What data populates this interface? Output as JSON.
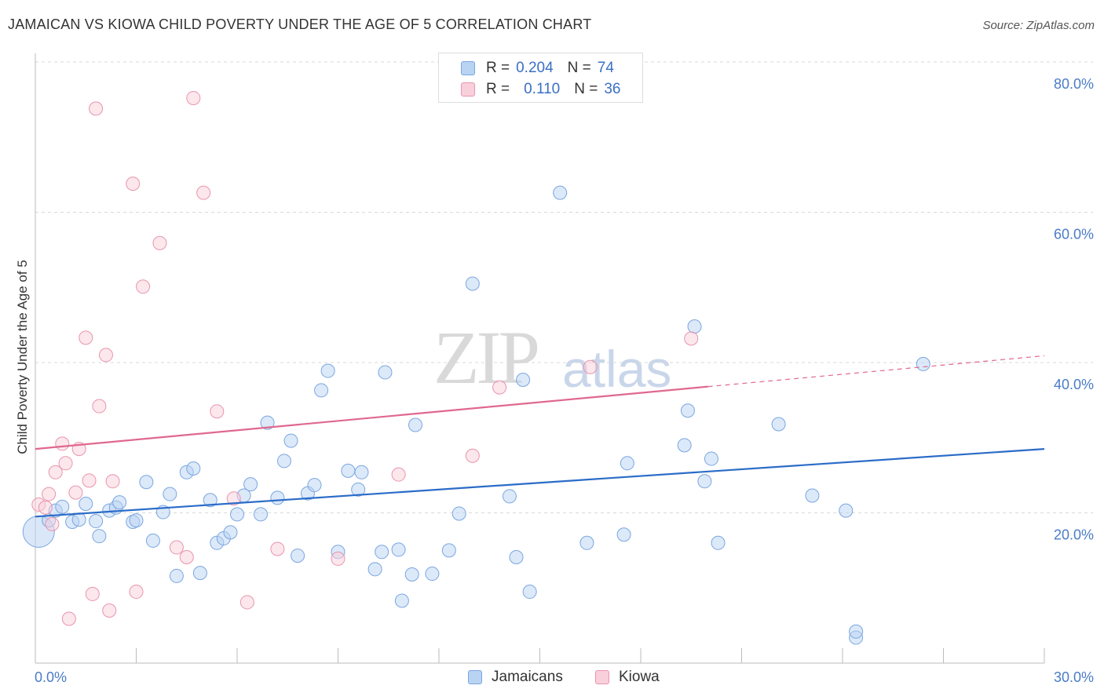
{
  "title": "JAMAICAN VS KIOWA CHILD POVERTY UNDER THE AGE OF 5 CORRELATION CHART",
  "source": "Source: ZipAtlas.com",
  "watermark": {
    "zip": "ZIP",
    "atlas": "atlas"
  },
  "legend": {
    "rows": [
      {
        "r_label": "R =",
        "r_value": "0.204",
        "n_label": "N =",
        "n_value": "74",
        "color": "#a8c8f0",
        "border": "#7aa6e0"
      },
      {
        "r_label": "R =",
        "r_value": "0.110",
        "n_label": "N =",
        "n_value": "36",
        "color": "#f7c0d0",
        "border": "#e895ad"
      }
    ]
  },
  "bottom_legend": [
    {
      "label": "Jamaicans",
      "color": "#a8c8f0",
      "border": "#7aa6e0"
    },
    {
      "label": "Kiowa",
      "color": "#f7c0d0",
      "border": "#e895ad"
    }
  ],
  "chart_data": {
    "type": "scatter",
    "title": "JAMAICAN VS KIOWA CHILD POVERTY UNDER THE AGE OF 5 CORRELATION CHART",
    "xlabel": "",
    "ylabel": "Child Poverty Under the Age of 5",
    "xlim": [
      0,
      30
    ],
    "ylim": [
      0,
      82
    ],
    "x_tick_labels": [
      "0.0%",
      "30.0%"
    ],
    "y_ticks": [
      20,
      40,
      60,
      80
    ],
    "y_tick_labels": [
      "20.0%",
      "40.0%",
      "60.0%",
      "80.0%"
    ],
    "grid": true,
    "legend_position": "top-center",
    "series": [
      {
        "name": "Jamaicans",
        "color": "#7aa6e0",
        "fill": "#b9d3f3",
        "trend": {
          "x": [
            0,
            30
          ],
          "y": [
            19.5,
            28.5
          ],
          "color": "#2b6cc8"
        },
        "points": [
          [
            0.1,
            17.5
          ],
          [
            0.4,
            19.0
          ],
          [
            0.6,
            20.3
          ],
          [
            0.8,
            20.8
          ],
          [
            1.1,
            18.8
          ],
          [
            1.3,
            19.1
          ],
          [
            1.5,
            21.2
          ],
          [
            1.8,
            18.9
          ],
          [
            1.9,
            16.9
          ],
          [
            2.2,
            20.3
          ],
          [
            2.4,
            20.7
          ],
          [
            2.5,
            21.4
          ],
          [
            2.9,
            18.8
          ],
          [
            3.0,
            19.0
          ],
          [
            3.3,
            24.1
          ],
          [
            3.5,
            16.3
          ],
          [
            3.8,
            20.1
          ],
          [
            4.0,
            22.5
          ],
          [
            4.2,
            11.6
          ],
          [
            4.5,
            25.4
          ],
          [
            4.7,
            25.9
          ],
          [
            4.9,
            12.0
          ],
          [
            5.2,
            21.7
          ],
          [
            5.4,
            16.0
          ],
          [
            5.6,
            16.6
          ],
          [
            5.8,
            17.4
          ],
          [
            6.0,
            19.8
          ],
          [
            6.2,
            22.3
          ],
          [
            6.4,
            23.8
          ],
          [
            6.7,
            19.8
          ],
          [
            6.9,
            32.0
          ],
          [
            7.2,
            22.0
          ],
          [
            7.4,
            26.9
          ],
          [
            7.6,
            29.6
          ],
          [
            7.8,
            14.3
          ],
          [
            8.1,
            22.6
          ],
          [
            8.3,
            23.7
          ],
          [
            8.5,
            36.3
          ],
          [
            8.7,
            38.9
          ],
          [
            9.0,
            14.8
          ],
          [
            9.3,
            25.6
          ],
          [
            9.6,
            23.1
          ],
          [
            9.7,
            25.4
          ],
          [
            10.1,
            12.5
          ],
          [
            10.3,
            14.8
          ],
          [
            10.4,
            38.7
          ],
          [
            10.8,
            15.1
          ],
          [
            10.9,
            8.3
          ],
          [
            11.2,
            11.8
          ],
          [
            11.3,
            31.7
          ],
          [
            11.8,
            11.9
          ],
          [
            12.3,
            15.0
          ],
          [
            12.6,
            19.9
          ],
          [
            13.0,
            50.5
          ],
          [
            14.1,
            22.2
          ],
          [
            14.3,
            14.1
          ],
          [
            14.5,
            37.7
          ],
          [
            14.7,
            9.5
          ],
          [
            15.6,
            62.6
          ],
          [
            16.4,
            16.0
          ],
          [
            17.5,
            17.1
          ],
          [
            17.6,
            26.6
          ],
          [
            19.3,
            29.0
          ],
          [
            19.4,
            33.6
          ],
          [
            19.6,
            44.8
          ],
          [
            19.9,
            24.2
          ],
          [
            20.1,
            27.2
          ],
          [
            20.3,
            16.0
          ],
          [
            22.1,
            31.8
          ],
          [
            23.1,
            22.3
          ],
          [
            24.1,
            20.3
          ],
          [
            24.4,
            3.4
          ],
          [
            24.4,
            4.2
          ],
          [
            26.4,
            39.8
          ]
        ]
      },
      {
        "name": "Kiowa",
        "color": "#e895ad",
        "fill": "#f9cfdb",
        "trend": {
          "x": [
            0,
            20.0
          ],
          "y": [
            28.5,
            36.8
          ],
          "dashed_to": [
            30,
            40.9
          ],
          "color": "#e0688e"
        },
        "points": [
          [
            0.1,
            21.1
          ],
          [
            0.3,
            20.7
          ],
          [
            0.4,
            22.5
          ],
          [
            0.5,
            18.5
          ],
          [
            0.6,
            25.4
          ],
          [
            0.8,
            29.2
          ],
          [
            0.9,
            26.6
          ],
          [
            1.0,
            5.9
          ],
          [
            1.2,
            22.7
          ],
          [
            1.3,
            28.5
          ],
          [
            1.5,
            43.3
          ],
          [
            1.6,
            24.3
          ],
          [
            1.7,
            9.2
          ],
          [
            1.8,
            73.8
          ],
          [
            1.9,
            34.2
          ],
          [
            2.1,
            41.0
          ],
          [
            2.2,
            7.0
          ],
          [
            2.3,
            24.2
          ],
          [
            2.9,
            63.8
          ],
          [
            3.0,
            9.5
          ],
          [
            3.2,
            50.1
          ],
          [
            3.7,
            55.9
          ],
          [
            4.2,
            15.4
          ],
          [
            4.5,
            14.1
          ],
          [
            4.7,
            75.2
          ],
          [
            5.0,
            62.6
          ],
          [
            5.4,
            33.5
          ],
          [
            5.9,
            21.9
          ],
          [
            6.3,
            8.1
          ],
          [
            7.2,
            15.2
          ],
          [
            9.0,
            13.9
          ],
          [
            10.8,
            25.1
          ],
          [
            13.0,
            27.6
          ],
          [
            13.8,
            36.7
          ],
          [
            16.5,
            39.4
          ],
          [
            19.5,
            43.2
          ]
        ]
      }
    ]
  }
}
